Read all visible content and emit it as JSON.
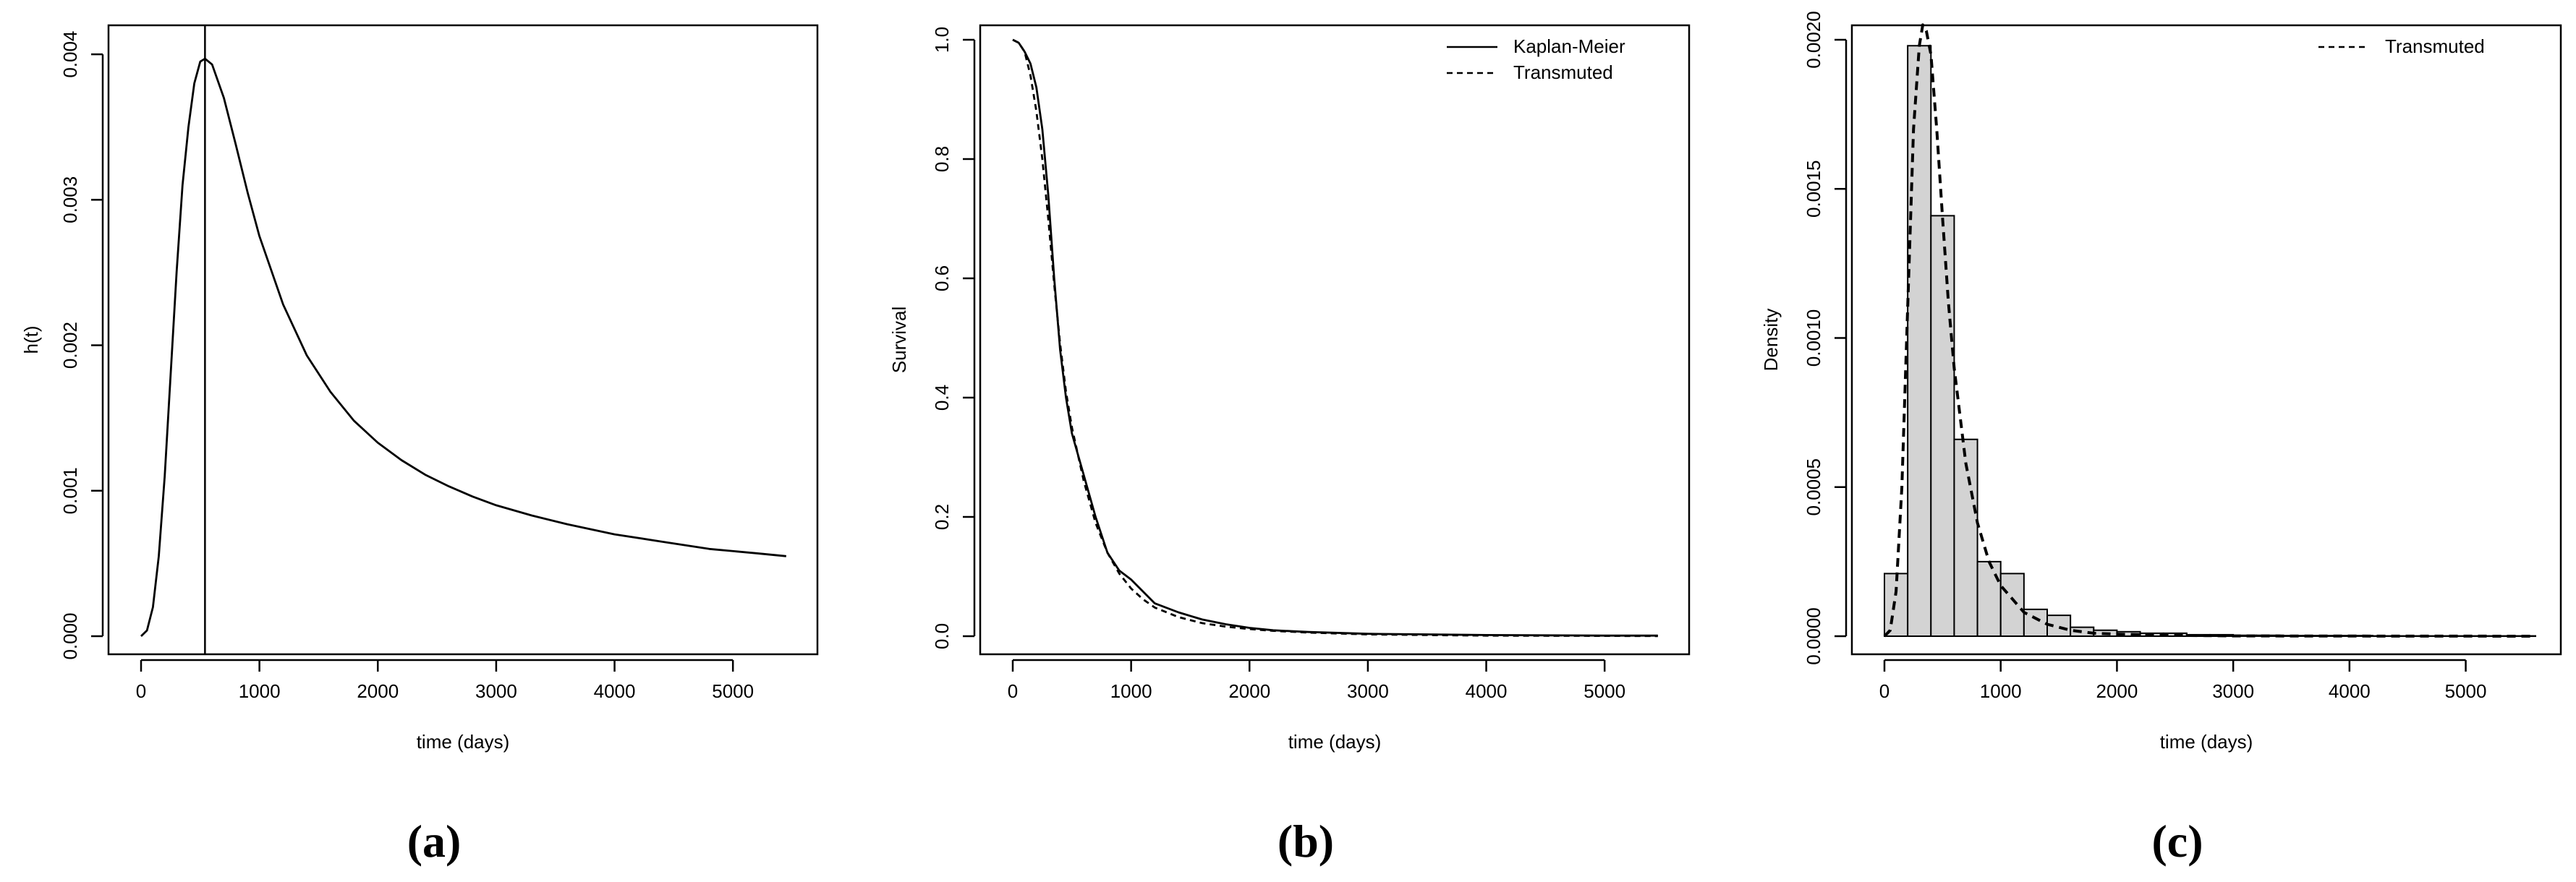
{
  "chart_data": [
    {
      "panel": "(a)",
      "type": "line",
      "xlabel": "time (days)",
      "ylabel": "h(t)",
      "xlim": [
        0,
        5500
      ],
      "ylim": [
        0,
        0.0041
      ],
      "xticks": [
        0,
        1000,
        2000,
        3000,
        4000,
        5000
      ],
      "xtick_labels": [
        "0",
        "1000",
        "2000",
        "3000",
        "4000",
        "5000"
      ],
      "yticks": [
        0,
        0.001,
        0.002,
        0.003,
        0.004
      ],
      "ytick_labels": [
        "0.000",
        "0.001",
        "0.002",
        "0.003",
        "0.004"
      ],
      "vline_x": 540,
      "series": [
        {
          "style": "solid",
          "x": [
            0,
            50,
            100,
            150,
            200,
            250,
            300,
            350,
            400,
            450,
            500,
            540,
            600,
            700,
            800,
            900,
            1000,
            1200,
            1400,
            1600,
            1800,
            2000,
            2200,
            2400,
            2600,
            2800,
            3000,
            3300,
            3600,
            4000,
            4400,
            4800,
            5200,
            5450
          ],
          "y": [
            0,
            4e-05,
            0.0002,
            0.00055,
            0.0011,
            0.0018,
            0.0025,
            0.0031,
            0.0035,
            0.0038,
            0.00395,
            0.00397,
            0.00393,
            0.0037,
            0.00338,
            0.00305,
            0.00275,
            0.00228,
            0.00193,
            0.00168,
            0.00148,
            0.00133,
            0.00121,
            0.00111,
            0.00103,
            0.00096,
            0.0009,
            0.00083,
            0.00077,
            0.0007,
            0.00065,
            0.0006,
            0.00057,
            0.00055
          ]
        }
      ]
    },
    {
      "panel": "(b)",
      "type": "line",
      "xlabel": "time (days)",
      "ylabel": "Survival",
      "xlim": [
        0,
        5500
      ],
      "ylim": [
        0,
        1.0
      ],
      "xticks": [
        0,
        1000,
        2000,
        3000,
        4000,
        5000
      ],
      "xtick_labels": [
        "0",
        "1000",
        "2000",
        "3000",
        "4000",
        "5000"
      ],
      "yticks": [
        0,
        0.2,
        0.4,
        0.6,
        0.8,
        1.0
      ],
      "ytick_labels": [
        "0.0",
        "0.2",
        "0.4",
        "0.6",
        "0.8",
        "1.0"
      ],
      "legend": {
        "position": "top-right",
        "entries": [
          "Kaplan-Meier",
          "Transmuted"
        ]
      },
      "series": [
        {
          "name": "Kaplan-Meier",
          "style": "solid",
          "x": [
            0,
            50,
            100,
            150,
            200,
            250,
            300,
            350,
            400,
            450,
            500,
            600,
            700,
            800,
            900,
            1000,
            1100,
            1200,
            1400,
            1600,
            1800,
            2000,
            2200,
            2500,
            3000,
            3500,
            4000,
            5000,
            5450
          ],
          "y": [
            1.0,
            0.995,
            0.98,
            0.96,
            0.92,
            0.85,
            0.74,
            0.6,
            0.48,
            0.4,
            0.34,
            0.27,
            0.2,
            0.14,
            0.11,
            0.095,
            0.075,
            0.055,
            0.04,
            0.028,
            0.02,
            0.014,
            0.01,
            0.007,
            0.004,
            0.003,
            0.002,
            0.001,
            0.001
          ]
        },
        {
          "name": "Transmuted",
          "style": "dashed",
          "x": [
            0,
            50,
            100,
            150,
            200,
            250,
            300,
            350,
            400,
            450,
            500,
            600,
            700,
            800,
            900,
            1000,
            1100,
            1200,
            1400,
            1600,
            1800,
            2000,
            2200,
            2500,
            3000,
            3500,
            4000,
            5000,
            5450
          ],
          "y": [
            1.0,
            0.995,
            0.98,
            0.94,
            0.88,
            0.8,
            0.7,
            0.59,
            0.49,
            0.41,
            0.35,
            0.26,
            0.19,
            0.14,
            0.105,
            0.08,
            0.062,
            0.048,
            0.032,
            0.022,
            0.016,
            0.012,
            0.009,
            0.006,
            0.003,
            0.002,
            0.001,
            0.0005,
            0.0003
          ]
        }
      ]
    },
    {
      "panel": "(c)",
      "type": "bar",
      "xlabel": "time (days)",
      "ylabel": "Density",
      "xlim": [
        0,
        5600
      ],
      "ylim": [
        0,
        0.002
      ],
      "xticks": [
        0,
        1000,
        2000,
        3000,
        4000,
        5000
      ],
      "xtick_labels": [
        "0",
        "1000",
        "2000",
        "3000",
        "4000",
        "5000"
      ],
      "yticks": [
        0,
        0.0005,
        0.001,
        0.0015,
        0.002
      ],
      "ytick_labels": [
        "0.0000",
        "0.0005",
        "0.0010",
        "0.0015",
        "0.0020"
      ],
      "legend": {
        "position": "top-right",
        "entries": [
          "Transmuted"
        ]
      },
      "bin_width": 200,
      "bin_starts": [
        0,
        200,
        400,
        600,
        800,
        1000,
        1200,
        1400,
        1600,
        1800,
        2000,
        2200,
        2400,
        2600,
        2800,
        3000,
        3200,
        3400,
        3600,
        3800,
        4000,
        4200,
        4400,
        4600,
        4800,
        5000,
        5200,
        5400
      ],
      "values": [
        0.00021,
        0.00198,
        0.00141,
        0.00066,
        0.00025,
        0.00021,
        9e-05,
        7e-05,
        3e-05,
        2e-05,
        1.5e-05,
        1e-05,
        1e-05,
        5e-06,
        5e-06,
        3e-06,
        3e-06,
        2e-06,
        2e-06,
        2e-06,
        2e-06,
        1e-06,
        1e-06,
        1e-06,
        1e-06,
        1e-06,
        1e-06,
        1e-06
      ],
      "series": [
        {
          "name": "Transmuted",
          "style": "dashed",
          "x": [
            0,
            50,
            100,
            150,
            200,
            250,
            300,
            330,
            360,
            400,
            450,
            500,
            550,
            600,
            700,
            800,
            900,
            1000,
            1200,
            1400,
            1600,
            1800,
            2000,
            2500,
            3000,
            4000,
            5000,
            5600
          ],
          "y": [
            0,
            2e-05,
            0.00015,
            0.0005,
            0.0011,
            0.0017,
            0.00198,
            0.00205,
            0.00203,
            0.00195,
            0.0017,
            0.0014,
            0.00112,
            0.0009,
            0.00058,
            0.00038,
            0.00025,
            0.00017,
            8e-05,
            4e-05,
            2e-05,
            1e-05,
            7e-06,
            3e-06,
            1e-06,
            5e-07,
            2e-07,
            1e-07
          ]
        }
      ]
    }
  ],
  "captions": [
    "(a)",
    "(b)",
    "(c)"
  ]
}
